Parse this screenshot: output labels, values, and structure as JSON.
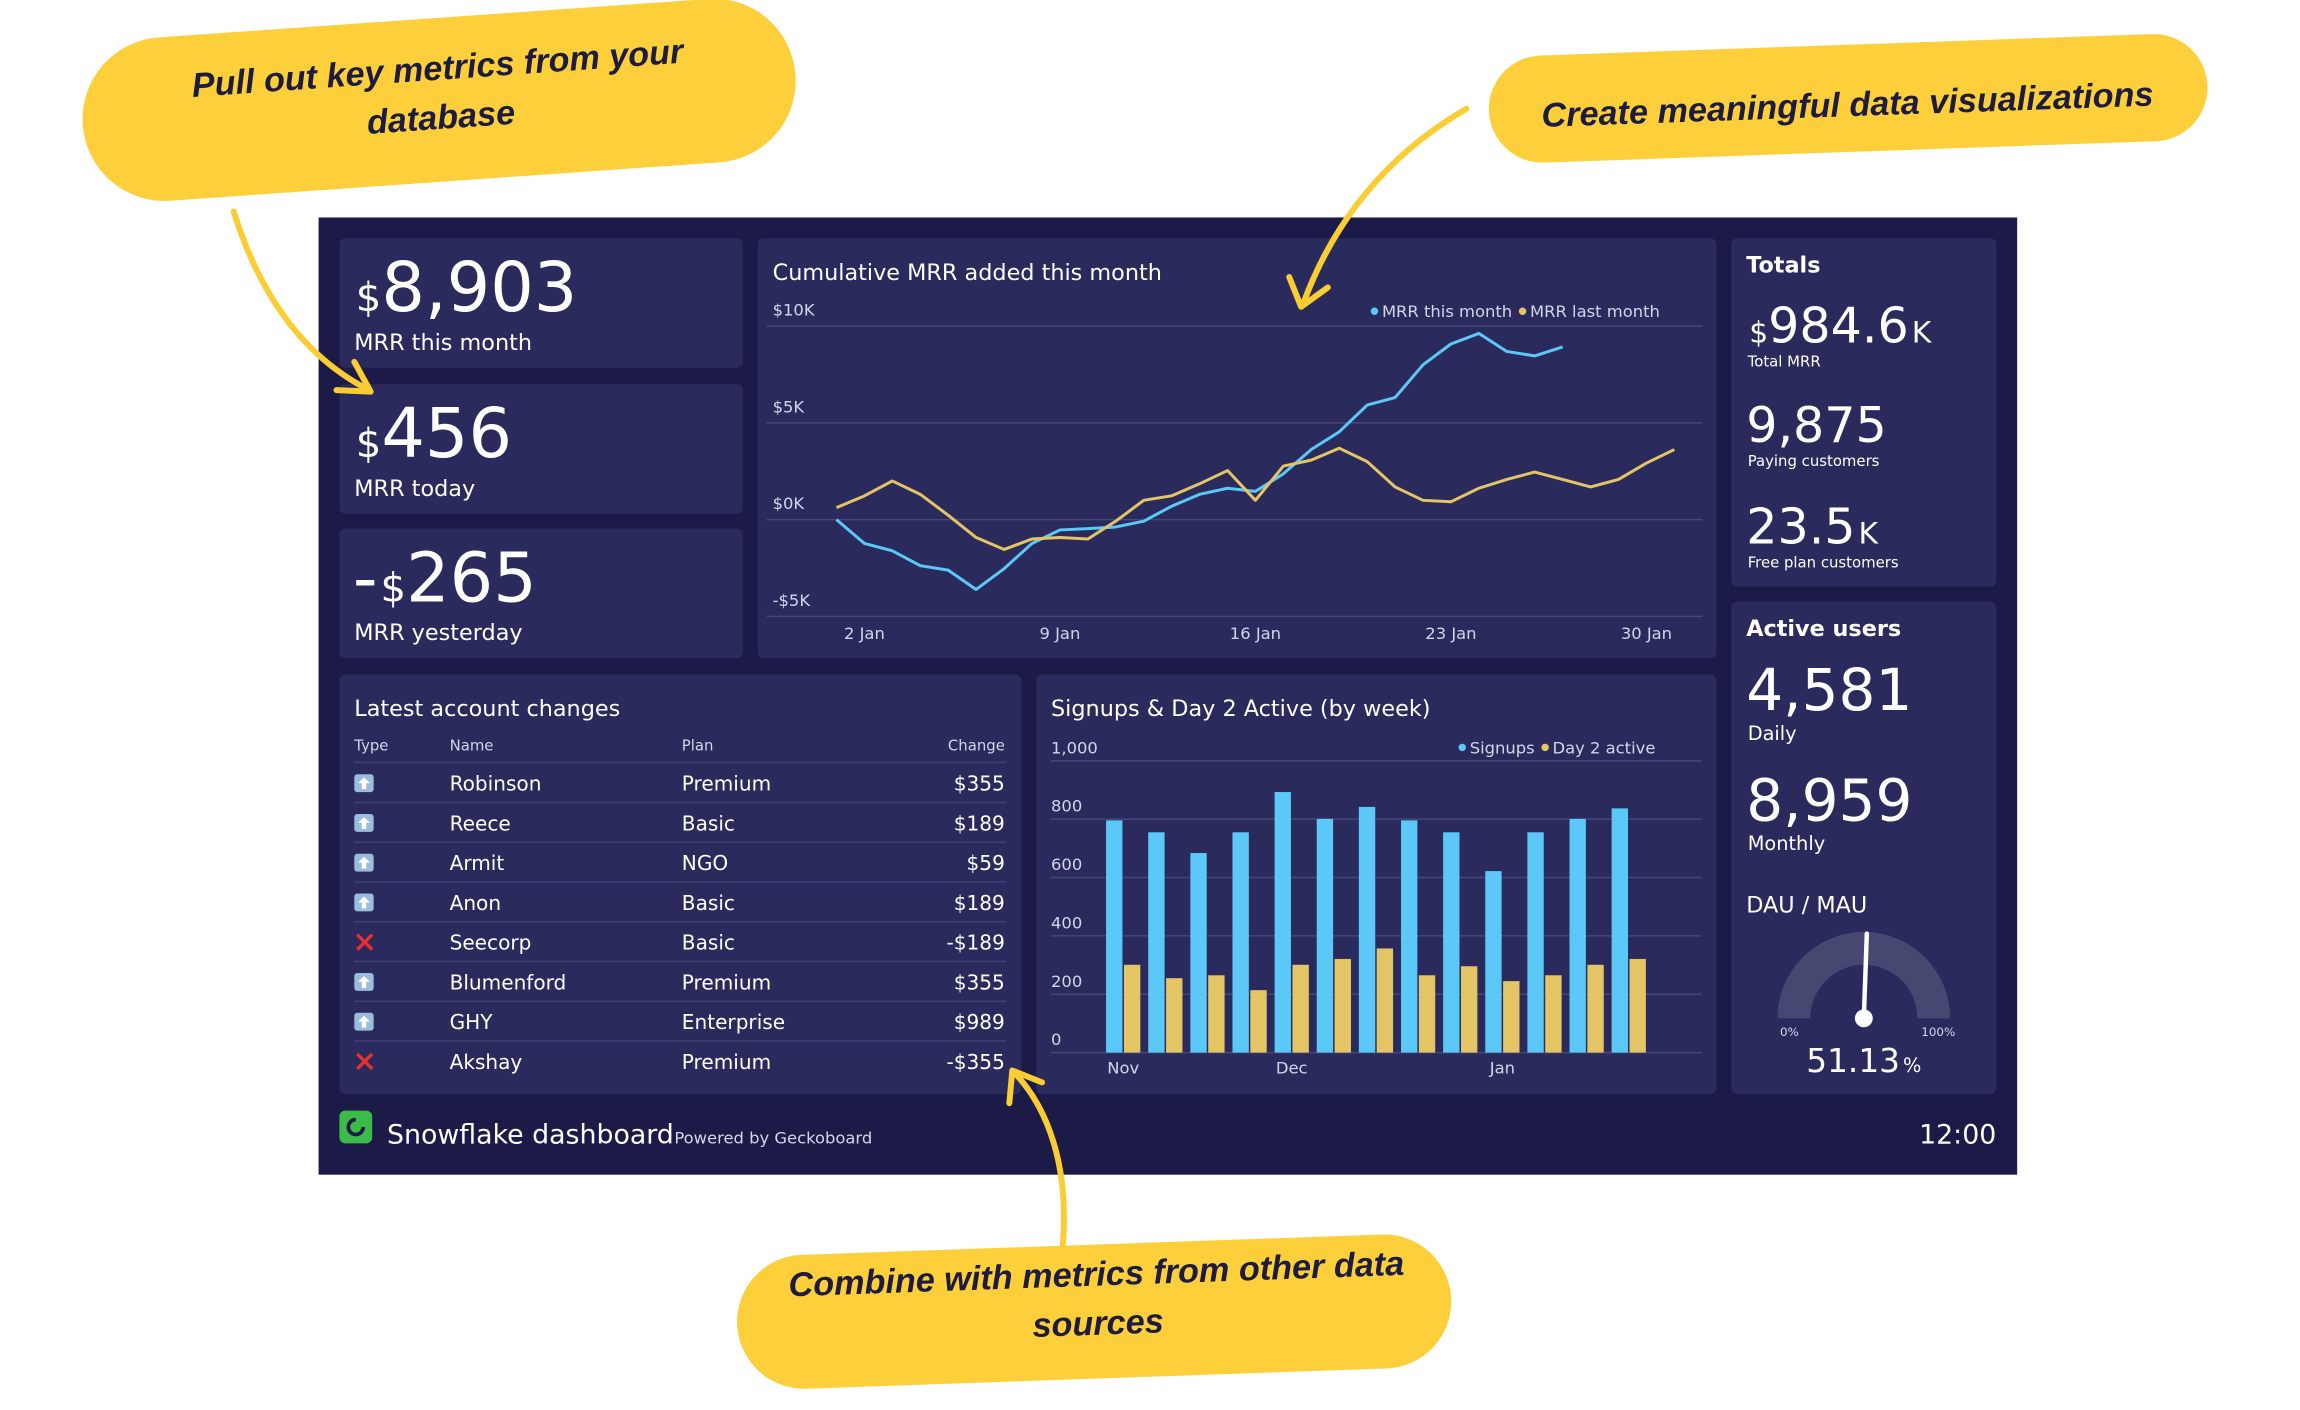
{
  "callouts": [
    {
      "lines": [
        "Pull out key metrics from your",
        "database"
      ]
    },
    {
      "lines": [
        "Create meaningful data visualizations"
      ]
    },
    {
      "lines": [
        "Combine with metrics from other data",
        "sources"
      ]
    }
  ],
  "metrics": [
    {
      "prefix": "$",
      "value": "8,903",
      "label": "MRR this month"
    },
    {
      "prefix": "$",
      "value": "456",
      "label": "MRR today"
    },
    {
      "sign": "-",
      "prefix": "$",
      "value": "265",
      "label": "MRR yesterday"
    }
  ],
  "mrr_chart": {
    "type": "line",
    "title": "Cumulative MRR added this month",
    "x": [
      1,
      2,
      3,
      4,
      5,
      6,
      7,
      8,
      9,
      10,
      11,
      12,
      13,
      14,
      15,
      16,
      17,
      18,
      19,
      20,
      21,
      22,
      23,
      24,
      25,
      26,
      27,
      28,
      29,
      30,
      31
    ],
    "xlim": [
      -1.5,
      32
    ],
    "xticks": [
      {
        "value": 2,
        "label": "2 Jan"
      },
      {
        "value": 9,
        "label": "9 Jan"
      },
      {
        "value": 16,
        "label": "16 Jan"
      },
      {
        "value": 23,
        "label": "23 Jan"
      },
      {
        "value": 30,
        "label": "30 Jan"
      }
    ],
    "ylim": [
      -5000,
      10000
    ],
    "yticks": [
      {
        "value": -5000,
        "label": "-$5K"
      },
      {
        "value": 0,
        "label": "$0K"
      },
      {
        "value": 5000,
        "label": "$5K"
      },
      {
        "value": 10000,
        "label": "$10K"
      }
    ],
    "grid": true,
    "series": [
      {
        "name": "MRR this month",
        "color": "#5bc8f7",
        "values": [
          0,
          -1230,
          -1610,
          -2380,
          -2610,
          -3610,
          -2530,
          -1230,
          -530,
          -460,
          -380,
          -80,
          690,
          1310,
          1620,
          1460,
          2370,
          3620,
          4540,
          5920,
          6310,
          8000,
          9080,
          9620,
          8690,
          8460,
          8920,
          null,
          null,
          null,
          null
        ]
      },
      {
        "name": "MRR last month",
        "color": "#e4c565",
        "values": [
          620,
          1230,
          2000,
          1310,
          230,
          -920,
          -1540,
          -1000,
          -920,
          -1000,
          -80,
          1000,
          1230,
          1850,
          2540,
          1000,
          2770,
          3080,
          3690,
          3000,
          1690,
          1000,
          920,
          1620,
          2080,
          2460,
          2080,
          1690,
          2080,
          2920,
          3620
        ]
      }
    ]
  },
  "account_changes": {
    "title": "Latest account changes",
    "columns": [
      "Type",
      "Name",
      "Plan",
      "Change"
    ],
    "rows": [
      {
        "name": "Robinson",
        "plan": "Premium",
        "change": "$355"
      },
      {
        "name": "Reece",
        "plan": "Basic",
        "change": "$189"
      },
      {
        "name": "Armit",
        "plan": "NGO",
        "change": "$59"
      },
      {
        "name": "Anon",
        "plan": "Basic",
        "change": "$189"
      },
      {
        "name": "Seecorp",
        "plan": "Basic",
        "change": "-$189"
      },
      {
        "name": "Blumenford",
        "plan": "Premium",
        "change": "$355"
      },
      {
        "name": "GHY",
        "plan": "Enterprise",
        "change": "$989"
      },
      {
        "name": "Akshay",
        "plan": "Premium",
        "change": "-$355"
      }
    ]
  },
  "signups_chart": {
    "type": "bar",
    "title": "Signups & Day 2 Active (by week)",
    "categories": [
      "Nov",
      null,
      null,
      null,
      "Dec",
      null,
      null,
      null,
      null,
      "Jan",
      null,
      null,
      null
    ],
    "ylim": [
      0,
      1000
    ],
    "yticks": [
      0,
      200,
      400,
      600,
      800,
      {
        "value": 1000,
        "label": "1,000"
      }
    ],
    "grid": true,
    "series": [
      {
        "name": "Signups",
        "color": "#5bc8f7",
        "values": [
          796,
          755,
          684,
          755,
          893,
          801,
          842,
          796,
          755,
          622,
          755,
          801,
          837
        ]
      },
      {
        "name": "Day 2 active",
        "color": "#e4c565",
        "values": [
          301,
          255,
          265,
          214,
          301,
          321,
          357,
          265,
          296,
          245,
          265,
          301,
          321
        ]
      }
    ]
  },
  "totals": {
    "title": "Totals",
    "items": [
      {
        "prefix": "$",
        "value": "984.6",
        "suffix": "K",
        "label": "Total MRR"
      },
      {
        "value": "9,875",
        "label": "Paying customers"
      },
      {
        "value": "23.5",
        "suffix": "K",
        "label": "Free plan customers"
      }
    ]
  },
  "active_users": {
    "title": "Active users",
    "items": [
      {
        "value": "4,581",
        "label": "Daily"
      },
      {
        "value": "8,959",
        "label": "Monthly"
      }
    ],
    "gauge": {
      "type": "gauge",
      "title": "DAU / MAU",
      "value": 51.13,
      "value_label": "51.13",
      "unit": "%",
      "ticks": [
        {
          "value": 0,
          "label": "0%"
        },
        {
          "value": 100,
          "label": "100%"
        }
      ]
    }
  },
  "footer": {
    "title": "Snowflake dashboard",
    "powered_by": "Powered by Geckoboard",
    "time": "12:00"
  }
}
